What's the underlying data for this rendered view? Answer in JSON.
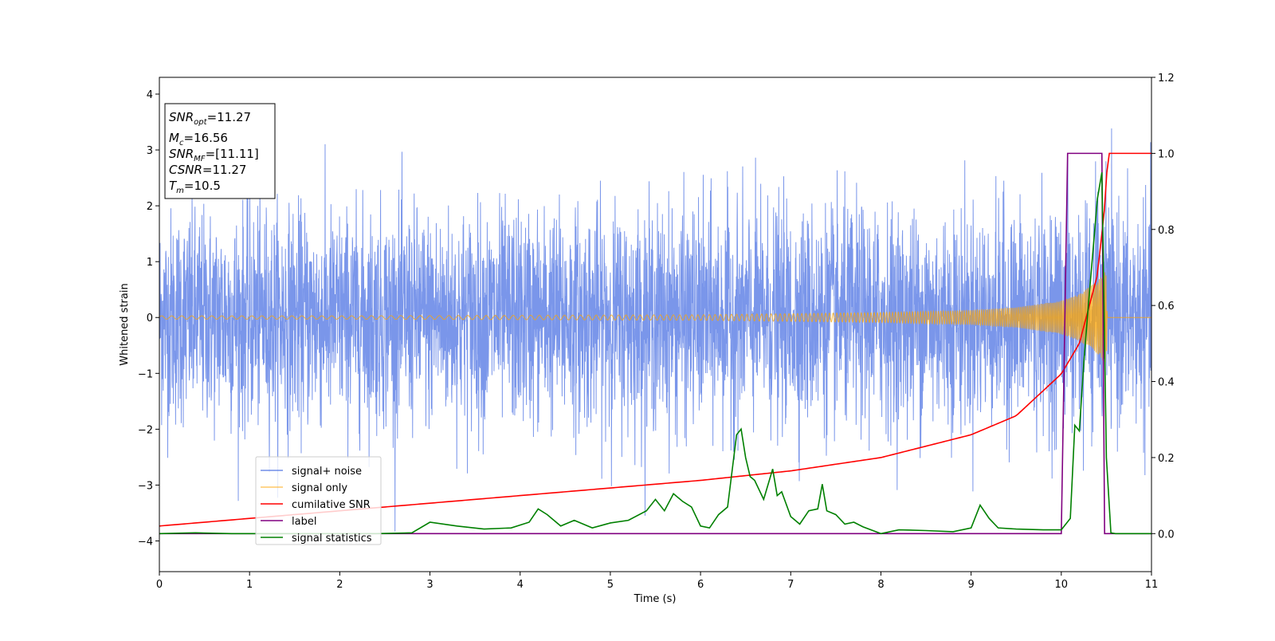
{
  "chart_data": {
    "type": "line",
    "xlabel": "Time (s)",
    "ylabel": "Whitened strain",
    "xlim": [
      0,
      11
    ],
    "ylim_left": [
      -4.55,
      4.3
    ],
    "ylim_right": [
      -0.1,
      1.2
    ],
    "x_ticks": [
      "0",
      "1",
      "2",
      "3",
      "4",
      "5",
      "6",
      "7",
      "8",
      "9",
      "10",
      "11"
    ],
    "y_ticks_left": [
      "−4",
      "−3",
      "−2",
      "−1",
      "0",
      "1",
      "2",
      "3",
      "4"
    ],
    "y_ticks_right": [
      "0.0",
      "0.2",
      "0.4",
      "0.6",
      "0.8",
      "1.0",
      "1.2"
    ],
    "grid": false,
    "legend_position": "lower-left",
    "colors": {
      "noise": "#4169e1",
      "signal": "#ffa500",
      "snr": "#ff0000",
      "label": "#800080",
      "stat": "#008000"
    },
    "info_box": {
      "snr_opt": "=11.27",
      "mc": "=16.56",
      "snr_mf": "=[11.11]",
      "csnr": "=11.27",
      "tm": "=10.5"
    },
    "series": [
      {
        "name": "signal+ noise",
        "axis": "left",
        "description_values": {
          "envelope_min": -4.2,
          "envelope_max": 3.9,
          "typical_amplitude": 1.0,
          "t_start": 0,
          "t_end": 11
        }
      },
      {
        "name": "signal only",
        "axis": "left",
        "x": [
          0,
          1,
          2,
          3,
          4,
          5,
          6,
          7,
          8,
          9,
          9.5,
          10,
          10.2,
          10.4,
          10.5,
          10.51,
          11
        ],
        "amplitude": [
          0.03,
          0.03,
          0.03,
          0.035,
          0.04,
          0.045,
          0.05,
          0.07,
          0.09,
          0.13,
          0.18,
          0.3,
          0.42,
          0.65,
          0.85,
          0,
          0
        ]
      },
      {
        "name": "cumilative SNR",
        "axis": "right",
        "x": [
          0,
          1,
          2,
          3,
          4,
          5,
          6,
          7,
          8,
          9,
          9.5,
          10,
          10.2,
          10.4,
          10.5,
          10.51,
          11
        ],
        "y": [
          0.02,
          0.04,
          0.06,
          0.08,
          0.1,
          0.12,
          0.14,
          0.165,
          0.2,
          0.26,
          0.31,
          0.42,
          0.5,
          0.68,
          0.9,
          1.0,
          1.0
        ]
      },
      {
        "name": "label",
        "axis": "right",
        "x": [
          0,
          10.0,
          10.07,
          10.45,
          10.48,
          11
        ],
        "y": [
          0,
          0,
          1,
          1,
          0,
          0
        ]
      },
      {
        "name": "signal statistics",
        "axis": "right",
        "x": [
          0,
          0.4,
          0.8,
          1.2,
          1.6,
          2.0,
          2.4,
          2.8,
          3.0,
          3.3,
          3.6,
          3.9,
          4.1,
          4.2,
          4.3,
          4.45,
          4.6,
          4.8,
          5.0,
          5.2,
          5.4,
          5.5,
          5.6,
          5.7,
          5.8,
          5.9,
          6.0,
          6.1,
          6.2,
          6.3,
          6.4,
          6.45,
          6.5,
          6.55,
          6.6,
          6.7,
          6.8,
          6.85,
          6.9,
          7.0,
          7.1,
          7.2,
          7.3,
          7.35,
          7.4,
          7.5,
          7.6,
          7.7,
          7.8,
          8.0,
          8.2,
          8.5,
          8.8,
          9.0,
          9.1,
          9.2,
          9.3,
          9.5,
          9.8,
          10.0,
          10.1,
          10.15,
          10.2,
          10.25,
          10.3,
          10.4,
          10.45,
          10.5,
          10.55,
          10.6,
          11.0
        ],
        "y": [
          0.0,
          0.002,
          0.0,
          0.0,
          0.0,
          0.0,
          0.0,
          0.002,
          0.03,
          0.02,
          0.012,
          0.015,
          0.03,
          0.065,
          0.05,
          0.02,
          0.035,
          0.015,
          0.028,
          0.035,
          0.06,
          0.09,
          0.06,
          0.105,
          0.085,
          0.07,
          0.02,
          0.015,
          0.05,
          0.07,
          0.26,
          0.275,
          0.2,
          0.15,
          0.14,
          0.09,
          0.17,
          0.1,
          0.11,
          0.045,
          0.025,
          0.06,
          0.065,
          0.13,
          0.06,
          0.05,
          0.025,
          0.03,
          0.018,
          0.0,
          0.01,
          0.008,
          0.005,
          0.015,
          0.075,
          0.04,
          0.015,
          0.012,
          0.01,
          0.01,
          0.04,
          0.285,
          0.27,
          0.45,
          0.6,
          0.88,
          0.95,
          0.2,
          0.002,
          0.0,
          0.0
        ]
      }
    ]
  }
}
